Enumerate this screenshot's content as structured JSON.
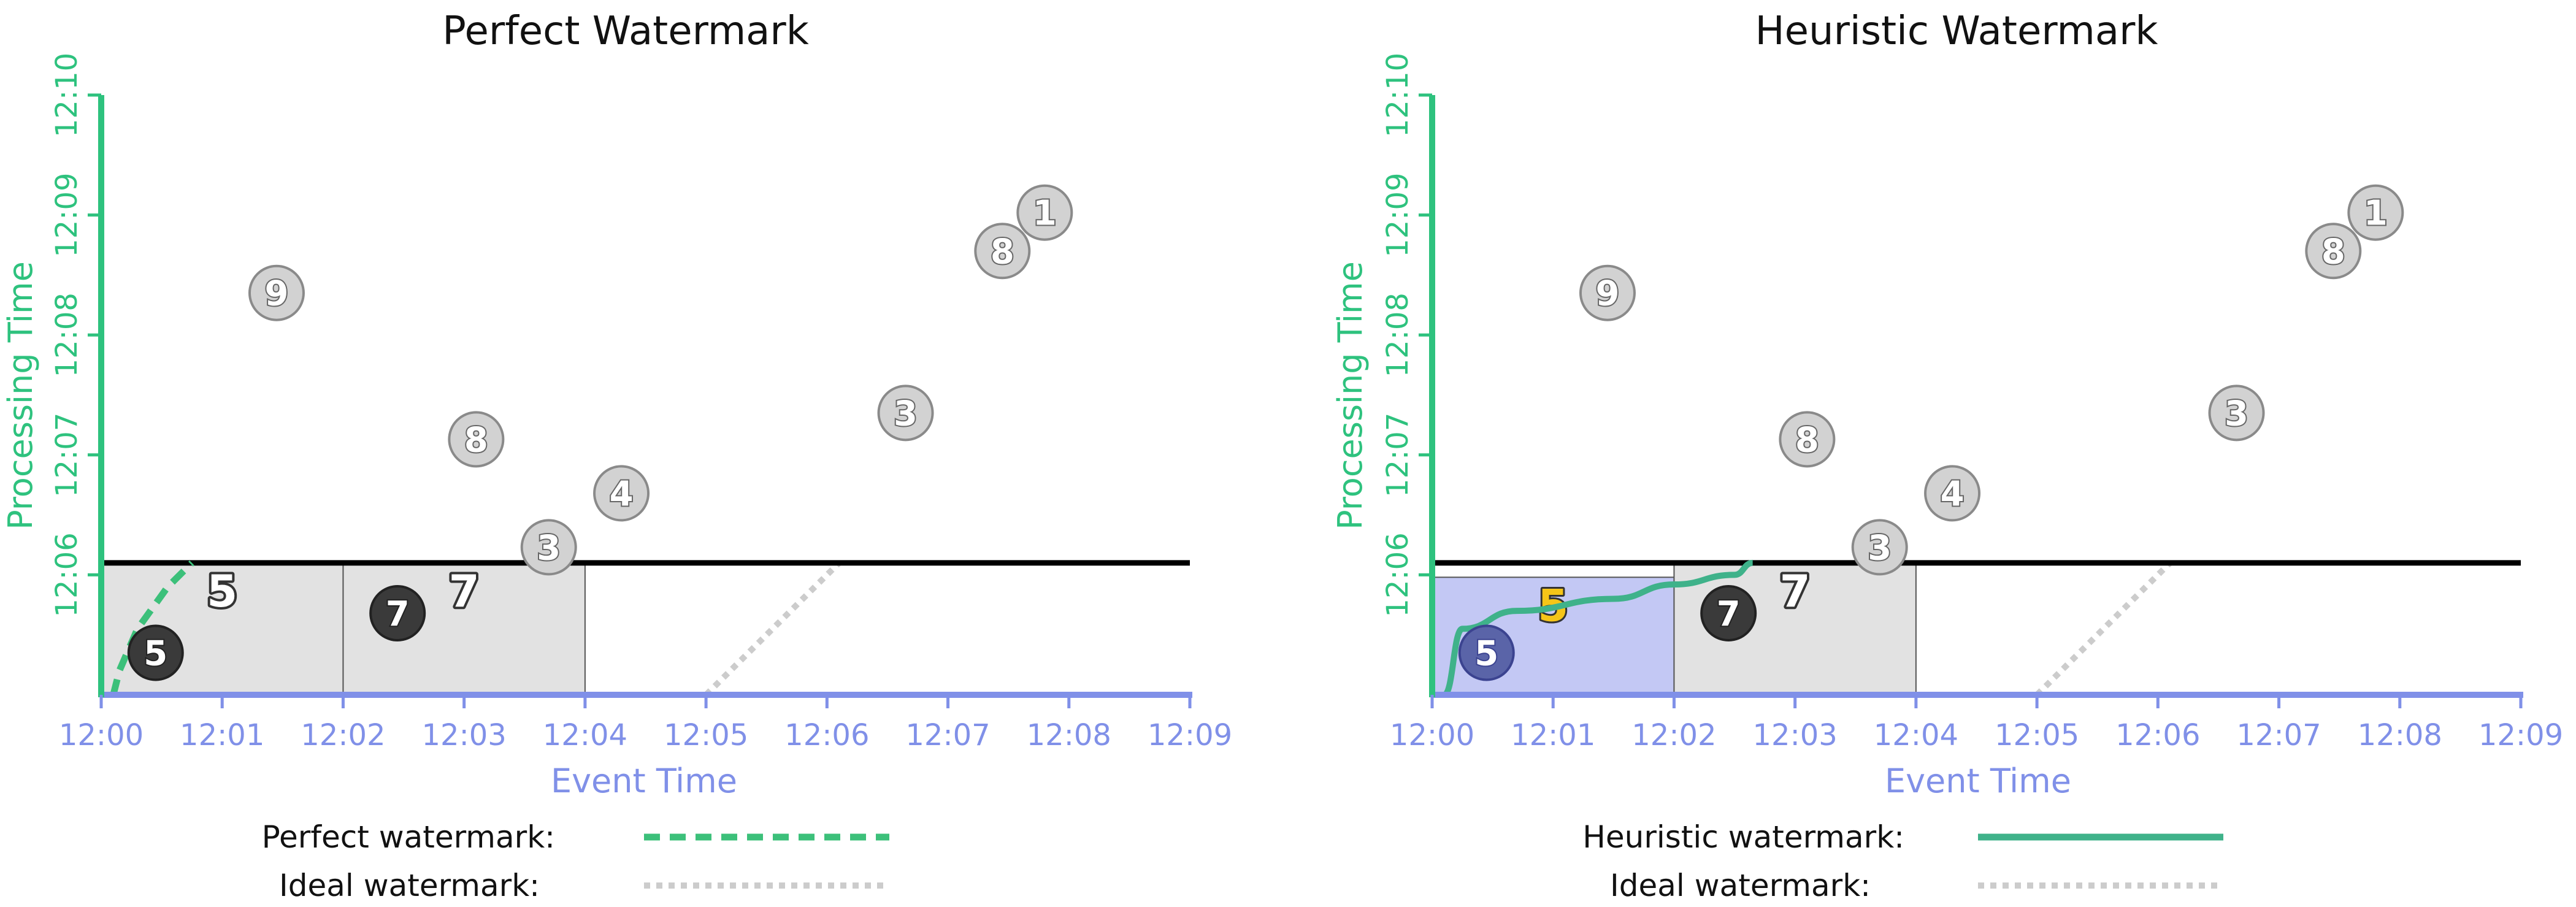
{
  "panels": [
    {
      "title": "Perfect Watermark",
      "xlabel": "Event Time",
      "ylabel": "Processing Time",
      "x_ticks": [
        "12:00",
        "12:01",
        "12:02",
        "12:03",
        "12:04",
        "12:05",
        "12:06",
        "12:07",
        "12:08",
        "12:09"
      ],
      "y_ticks": [
        "12:06",
        "12:07",
        "12:08",
        "12:09",
        "12:10"
      ],
      "legend": [
        {
          "label": "Perfect watermark:",
          "style": "dashed-green"
        },
        {
          "label": "Ideal watermark:",
          "style": "dotted-gray"
        }
      ]
    },
    {
      "title": "Heuristic Watermark",
      "xlabel": "Event Time",
      "ylabel": "Processing Time",
      "x_ticks": [
        "12:00",
        "12:01",
        "12:02",
        "12:03",
        "12:04",
        "12:05",
        "12:06",
        "12:07",
        "12:08",
        "12:09"
      ],
      "y_ticks": [
        "12:06",
        "12:07",
        "12:08",
        "12:09",
        "12:10"
      ],
      "legend": [
        {
          "label": "Heuristic watermark:",
          "style": "solid-green"
        },
        {
          "label": "Ideal watermark:",
          "style": "dotted-gray"
        }
      ]
    }
  ],
  "colors": {
    "axis_x": "#8090e8",
    "axis_y": "#2ec27e",
    "watermark": "#3cc07a",
    "heuristic_line": "#3fb28a",
    "ideal": "#cccccc",
    "window_fill": "#e2e2e2",
    "window_fill_active": "#c3c8f4",
    "point_fill": "#d2d2d2",
    "point_dark": "#3a3a3a",
    "highlight": "#f5c518"
  },
  "chart_data": [
    {
      "type": "scatter",
      "title": "Perfect Watermark",
      "xlabel": "Event Time",
      "ylabel": "Processing Time",
      "x_unit": "minutes after 12:00",
      "y_unit": "minutes after 12:05",
      "xlim": [
        0,
        9
      ],
      "ylim": [
        0,
        5
      ],
      "points": [
        {
          "label": "9",
          "x": 1.45,
          "y": 3.35,
          "state": "late"
        },
        {
          "label": "8",
          "x": 3.1,
          "y": 2.13,
          "state": "late"
        },
        {
          "label": "4",
          "x": 4.3,
          "y": 1.68,
          "state": "late"
        },
        {
          "label": "3",
          "x": 3.7,
          "y": 1.23,
          "state": "late"
        },
        {
          "label": "3",
          "x": 6.65,
          "y": 2.35,
          "state": "late"
        },
        {
          "label": "8",
          "x": 7.45,
          "y": 3.7,
          "state": "late"
        },
        {
          "label": "1",
          "x": 7.8,
          "y": 4.02,
          "state": "late"
        },
        {
          "label": "5",
          "x": 0.45,
          "y": 0.35,
          "state": "on-time"
        },
        {
          "label": "7",
          "x": 2.45,
          "y": 0.68,
          "state": "on-time"
        }
      ],
      "windows": [
        {
          "start": 0,
          "end": 2,
          "result": "5"
        },
        {
          "start": 2,
          "end": 4,
          "result": "7"
        }
      ],
      "current_processing_time": 1.1,
      "series": [
        {
          "name": "Perfect watermark",
          "style": "dashed",
          "points": [
            [
              0.1,
              0
            ],
            [
              0.15,
              0.2
            ],
            [
              0.3,
              0.55
            ],
            [
              0.55,
              0.9
            ],
            [
              0.75,
              1.1
            ]
          ]
        },
        {
          "name": "Ideal watermark",
          "style": "dotted",
          "points": [
            [
              5,
              0
            ],
            [
              6.1,
              1.1
            ]
          ]
        }
      ]
    },
    {
      "type": "scatter",
      "title": "Heuristic Watermark",
      "xlabel": "Event Time",
      "ylabel": "Processing Time",
      "x_unit": "minutes after 12:00",
      "y_unit": "minutes after 12:05",
      "xlim": [
        0,
        9
      ],
      "ylim": [
        0,
        5
      ],
      "points": [
        {
          "label": "9",
          "x": 1.45,
          "y": 3.35,
          "state": "late"
        },
        {
          "label": "8",
          "x": 3.1,
          "y": 2.13,
          "state": "late"
        },
        {
          "label": "4",
          "x": 4.3,
          "y": 1.68,
          "state": "late"
        },
        {
          "label": "3",
          "x": 3.7,
          "y": 1.23,
          "state": "late"
        },
        {
          "label": "3",
          "x": 6.65,
          "y": 2.35,
          "state": "late"
        },
        {
          "label": "8",
          "x": 7.45,
          "y": 3.7,
          "state": "late"
        },
        {
          "label": "1",
          "x": 7.8,
          "y": 4.02,
          "state": "late"
        },
        {
          "label": "5",
          "x": 0.45,
          "y": 0.35,
          "state": "processed"
        },
        {
          "label": "7",
          "x": 2.45,
          "y": 0.68,
          "state": "on-time"
        }
      ],
      "windows": [
        {
          "start": 0,
          "end": 2,
          "result": "5",
          "state": "fired"
        },
        {
          "start": 2,
          "end": 4,
          "result": "7"
        }
      ],
      "current_processing_time": 1.1,
      "series": [
        {
          "name": "Heuristic watermark",
          "style": "solid",
          "points": [
            [
              0.1,
              0
            ],
            [
              0.25,
              0.55
            ],
            [
              0.7,
              0.7
            ],
            [
              1.5,
              0.8
            ],
            [
              2.0,
              0.92
            ],
            [
              2.5,
              1.0
            ],
            [
              2.65,
              1.1
            ]
          ]
        },
        {
          "name": "Ideal watermark",
          "style": "dotted",
          "points": [
            [
              5,
              0
            ],
            [
              6.1,
              1.1
            ]
          ]
        }
      ]
    }
  ]
}
